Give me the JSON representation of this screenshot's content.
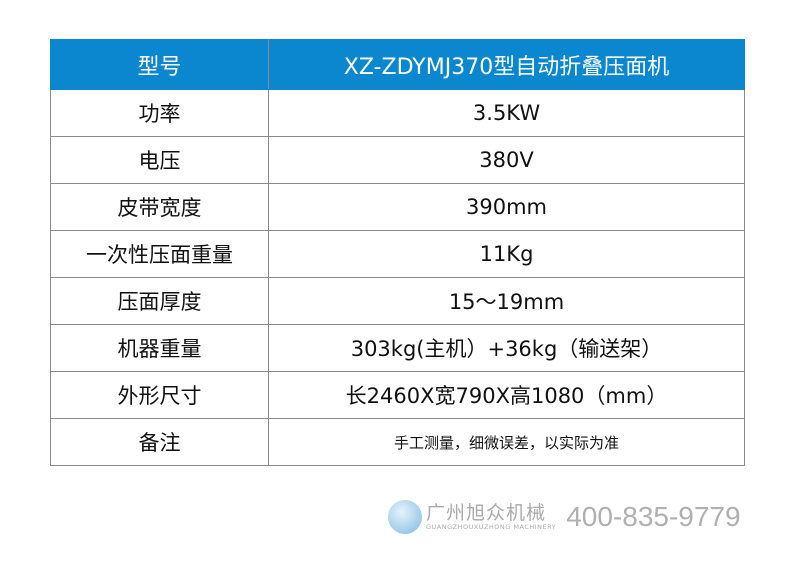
{
  "header": {
    "key": "型号",
    "value": "XZ-ZDYMJ370型自动折叠压面机"
  },
  "rows": [
    {
      "key": "功率",
      "value": "3.5KW"
    },
    {
      "key": "电压",
      "value": "380V"
    },
    {
      "key": "皮带宽度",
      "value": "390mm"
    },
    {
      "key": "一次性压面重量",
      "value": "11Kg"
    },
    {
      "key": "压面厚度",
      "value": "15～19mm"
    },
    {
      "key": "机器重量",
      "value": "303kg(主机）+36kg（输送架）"
    },
    {
      "key": "外形尺寸",
      "value": "长2460X宽790X高1080（mm）"
    },
    {
      "key": "备注",
      "value": "手工测量，细微误差，以实际为准"
    }
  ],
  "footer": {
    "brand_cn": "广州旭众机械",
    "brand_en": "GUANGZHOUXUZHONG MACHINERY",
    "phone": "400-835-9779",
    "accent": "#0a87cf"
  }
}
